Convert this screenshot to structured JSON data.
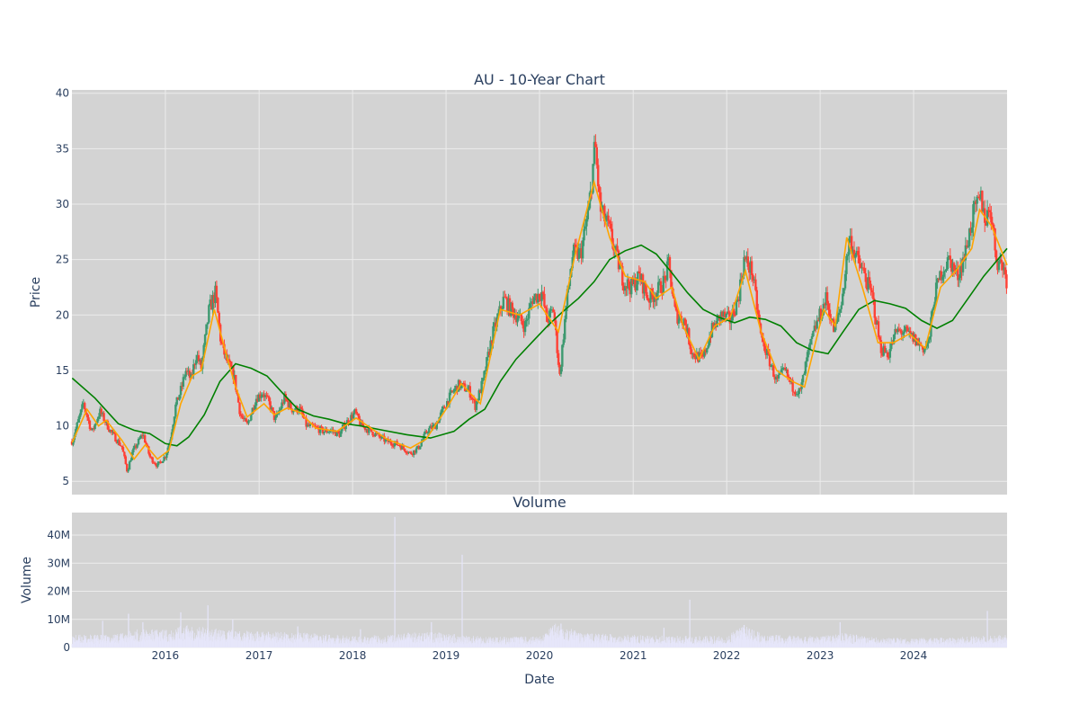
{
  "chart_data": [
    {
      "type": "candlestick",
      "title": "AU - 10-Year Chart",
      "ylabel": "Price",
      "ylim": [
        3.8,
        40.3
      ],
      "y_ticks": [
        5,
        10,
        15,
        20,
        25,
        30,
        35,
        40
      ],
      "xlim": [
        "2015-01-01",
        "2024-12-31"
      ],
      "grid": true,
      "colors": {
        "up": "#3d9970",
        "down": "#ff4136",
        "sma_fast": "#ffa500",
        "sma_slow": "#008000",
        "plot_bg": "#d3d3d3"
      },
      "price_path": [
        [
          "2015-01-02",
          8.6
        ],
        [
          "2015-02-15",
          12.0
        ],
        [
          "2015-03-20",
          9.4
        ],
        [
          "2015-04-20",
          11.3
        ],
        [
          "2015-06-01",
          9.5
        ],
        [
          "2015-07-15",
          8.1
        ],
        [
          "2015-08-05",
          5.9
        ],
        [
          "2015-08-25",
          7.6
        ],
        [
          "2015-10-05",
          9.3
        ],
        [
          "2015-11-01",
          7.2
        ],
        [
          "2015-12-01",
          6.4
        ],
        [
          "2016-01-01",
          7.3
        ],
        [
          "2016-01-20",
          8.8
        ],
        [
          "2016-02-10",
          11.8
        ],
        [
          "2016-03-05",
          13.5
        ],
        [
          "2016-03-20",
          15.0
        ],
        [
          "2016-04-10",
          14.2
        ],
        [
          "2016-05-01",
          16.5
        ],
        [
          "2016-05-20",
          15.2
        ],
        [
          "2016-06-20",
          20.5
        ],
        [
          "2016-07-15",
          22.0
        ],
        [
          "2016-08-05",
          17.5
        ],
        [
          "2016-08-25",
          16.0
        ],
        [
          "2016-09-25",
          14.5
        ],
        [
          "2016-10-20",
          11.0
        ],
        [
          "2016-11-15",
          10.0
        ],
        [
          "2016-12-20",
          12.5
        ],
        [
          "2017-01-15",
          13.0
        ],
        [
          "2017-02-10",
          12.0
        ],
        [
          "2017-03-05",
          10.5
        ],
        [
          "2017-04-10",
          12.5
        ],
        [
          "2017-05-10",
          11.5
        ],
        [
          "2017-06-10",
          11.5
        ],
        [
          "2017-07-05",
          10.0
        ],
        [
          "2017-08-10",
          9.8
        ],
        [
          "2017-09-10",
          9.5
        ],
        [
          "2017-10-10",
          9.6
        ],
        [
          "2017-11-10",
          9.2
        ],
        [
          "2017-12-05",
          10.2
        ],
        [
          "2018-01-10",
          11.2
        ],
        [
          "2018-02-05",
          10.0
        ],
        [
          "2018-03-15",
          9.5
        ],
        [
          "2018-04-15",
          9.0
        ],
        [
          "2018-05-15",
          8.6
        ],
        [
          "2018-07-01",
          8.3
        ],
        [
          "2018-08-15",
          7.5
        ],
        [
          "2018-09-15",
          8.0
        ],
        [
          "2018-10-20",
          9.6
        ],
        [
          "2018-11-20",
          10.0
        ],
        [
          "2019-01-01",
          12.0
        ],
        [
          "2019-01-25",
          13.0
        ],
        [
          "2019-02-20",
          13.7
        ],
        [
          "2019-04-01",
          13.2
        ],
        [
          "2019-04-25",
          11.8
        ],
        [
          "2019-05-25",
          14.0
        ],
        [
          "2019-07-01",
          18.2
        ],
        [
          "2019-08-15",
          21.5
        ],
        [
          "2019-09-10",
          20.5
        ],
        [
          "2019-10-10",
          19.8
        ],
        [
          "2019-11-05",
          19.0
        ],
        [
          "2019-12-05",
          21.5
        ],
        [
          "2020-01-10",
          22.0
        ],
        [
          "2020-01-30",
          19.5
        ],
        [
          "2020-02-25",
          20.5
        ],
        [
          "2020-03-20",
          14.5
        ],
        [
          "2020-04-15",
          21.0
        ],
        [
          "2020-05-10",
          25.5
        ],
        [
          "2020-06-10",
          25.5
        ],
        [
          "2020-07-15",
          30.0
        ],
        [
          "2020-08-05",
          35.5
        ],
        [
          "2020-08-25",
          29.5
        ],
        [
          "2020-09-25",
          28.0
        ],
        [
          "2020-10-25",
          25.5
        ],
        [
          "2020-11-25",
          23.0
        ],
        [
          "2020-12-25",
          22.5
        ],
        [
          "2021-01-25",
          23.5
        ],
        [
          "2021-03-01",
          21.5
        ],
        [
          "2021-04-01",
          22.0
        ],
        [
          "2021-05-01",
          23.0
        ],
        [
          "2021-05-20",
          24.5
        ],
        [
          "2021-06-15",
          20.0
        ],
        [
          "2021-07-20",
          19.5
        ],
        [
          "2021-08-20",
          16.5
        ],
        [
          "2021-09-30",
          16.0
        ],
        [
          "2021-11-01",
          18.5
        ],
        [
          "2021-12-10",
          20.0
        ],
        [
          "2022-01-15",
          19.5
        ],
        [
          "2022-02-15",
          21.5
        ],
        [
          "2022-03-10",
          25.0
        ],
        [
          "2022-04-10",
          24.0
        ],
        [
          "2022-05-15",
          18.0
        ],
        [
          "2022-06-15",
          16.0
        ],
        [
          "2022-07-15",
          14.0
        ],
        [
          "2022-08-15",
          15.0
        ],
        [
          "2022-09-15",
          13.5
        ],
        [
          "2022-10-15",
          13.0
        ],
        [
          "2022-11-15",
          16.5
        ],
        [
          "2022-12-15",
          19.0
        ],
        [
          "2023-01-25",
          21.5
        ],
        [
          "2023-02-25",
          18.5
        ],
        [
          "2023-03-25",
          21.0
        ],
        [
          "2023-04-25",
          27.0
        ],
        [
          "2023-05-25",
          25.0
        ],
        [
          "2023-06-25",
          23.5
        ],
        [
          "2023-07-25",
          21.5
        ],
        [
          "2023-08-25",
          17.0
        ],
        [
          "2023-09-25",
          16.5
        ],
        [
          "2023-10-25",
          18.5
        ],
        [
          "2023-11-25",
          18.5
        ],
        [
          "2023-12-25",
          18.0
        ],
        [
          "2024-02-10",
          17.0
        ],
        [
          "2024-03-01",
          17.5
        ],
        [
          "2024-03-20",
          21.5
        ],
        [
          "2024-04-20",
          24.0
        ],
        [
          "2024-05-20",
          25.0
        ],
        [
          "2024-06-20",
          23.5
        ],
        [
          "2024-07-20",
          25.5
        ],
        [
          "2024-08-20",
          29.0
        ],
        [
          "2024-09-20",
          30.5
        ],
        [
          "2024-10-10",
          28.5
        ],
        [
          "2024-10-25",
          30.0
        ],
        [
          "2024-11-20",
          25.0
        ],
        [
          "2024-12-15",
          24.5
        ],
        [
          "2024-12-31",
          23.0
        ]
      ],
      "sma_fast": [
        [
          "2015-01-02",
          8.5
        ],
        [
          "2015-03-01",
          11.5
        ],
        [
          "2015-04-15",
          10.0
        ],
        [
          "2015-05-15",
          10.5
        ],
        [
          "2015-07-15",
          8.7
        ],
        [
          "2015-09-01",
          7.0
        ],
        [
          "2015-10-15",
          8.3
        ],
        [
          "2015-12-01",
          7.0
        ],
        [
          "2016-01-15",
          7.8
        ],
        [
          "2016-03-01",
          12.0
        ],
        [
          "2016-04-15",
          14.5
        ],
        [
          "2016-05-20",
          15.0
        ],
        [
          "2016-07-10",
          20.5
        ],
        [
          "2016-08-25",
          16.5
        ],
        [
          "2016-10-01",
          13.5
        ],
        [
          "2016-11-15",
          10.8
        ],
        [
          "2017-01-20",
          12.0
        ],
        [
          "2017-03-01",
          11.0
        ],
        [
          "2017-04-20",
          11.6
        ],
        [
          "2017-06-10",
          11.2
        ],
        [
          "2017-08-10",
          9.8
        ],
        [
          "2017-11-01",
          9.5
        ],
        [
          "2018-01-15",
          10.7
        ],
        [
          "2018-03-01",
          10.0
        ],
        [
          "2018-05-15",
          8.8
        ],
        [
          "2018-08-15",
          8.0
        ],
        [
          "2018-10-15",
          8.8
        ],
        [
          "2019-01-01",
          11.5
        ],
        [
          "2019-03-01",
          13.8
        ],
        [
          "2019-05-15",
          12.0
        ],
        [
          "2019-08-01",
          20.5
        ],
        [
          "2019-10-15",
          20.0
        ],
        [
          "2020-01-01",
          21.0
        ],
        [
          "2020-03-15",
          18.5
        ],
        [
          "2020-05-15",
          25.0
        ],
        [
          "2020-08-01",
          32.0
        ],
        [
          "2020-10-01",
          27.0
        ],
        [
          "2020-12-01",
          23.5
        ],
        [
          "2021-02-15",
          23.0
        ],
        [
          "2021-04-01",
          21.5
        ],
        [
          "2021-06-01",
          22.5
        ],
        [
          "2021-07-15",
          19.0
        ],
        [
          "2021-09-15",
          16.0
        ],
        [
          "2021-11-15",
          19.0
        ],
        [
          "2022-01-15",
          19.8
        ],
        [
          "2022-03-15",
          24.0
        ],
        [
          "2022-05-15",
          18.5
        ],
        [
          "2022-07-15",
          15.0
        ],
        [
          "2022-09-15",
          14.0
        ],
        [
          "2022-11-01",
          13.5
        ],
        [
          "2023-01-15",
          20.5
        ],
        [
          "2023-03-01",
          19.0
        ],
        [
          "2023-04-15",
          27.0
        ],
        [
          "2023-06-15",
          22.5
        ],
        [
          "2023-08-15",
          17.5
        ],
        [
          "2023-10-15",
          17.5
        ],
        [
          "2023-12-15",
          18.3
        ],
        [
          "2024-02-15",
          17.0
        ],
        [
          "2024-04-15",
          22.5
        ],
        [
          "2024-06-15",
          24.0
        ],
        [
          "2024-08-15",
          26.0
        ],
        [
          "2024-09-15",
          29.5
        ],
        [
          "2024-11-01",
          28.0
        ],
        [
          "2024-12-31",
          24.5
        ]
      ],
      "sma_slow": [
        [
          "2015-01-02",
          14.3
        ],
        [
          "2015-04-01",
          12.5
        ],
        [
          "2015-07-01",
          10.2
        ],
        [
          "2015-09-01",
          9.6
        ],
        [
          "2015-11-01",
          9.3
        ],
        [
          "2016-01-01",
          8.4
        ],
        [
          "2016-02-15",
          8.2
        ],
        [
          "2016-04-01",
          9.0
        ],
        [
          "2016-06-01",
          11.0
        ],
        [
          "2016-08-01",
          14.0
        ],
        [
          "2016-10-01",
          15.6
        ],
        [
          "2016-12-01",
          15.2
        ],
        [
          "2017-02-01",
          14.5
        ],
        [
          "2017-04-01",
          13.0
        ],
        [
          "2017-06-01",
          11.5
        ],
        [
          "2017-08-01",
          10.9
        ],
        [
          "2017-10-01",
          10.6
        ],
        [
          "2017-12-01",
          10.2
        ],
        [
          "2018-02-01",
          10.0
        ],
        [
          "2018-05-01",
          9.6
        ],
        [
          "2018-08-01",
          9.2
        ],
        [
          "2018-11-01",
          8.9
        ],
        [
          "2019-02-01",
          9.5
        ],
        [
          "2019-04-01",
          10.6
        ],
        [
          "2019-06-01",
          11.5
        ],
        [
          "2019-08-01",
          14.0
        ],
        [
          "2019-10-01",
          16.0
        ],
        [
          "2019-12-01",
          17.5
        ],
        [
          "2020-02-01",
          19.0
        ],
        [
          "2020-04-01",
          20.3
        ],
        [
          "2020-06-01",
          21.5
        ],
        [
          "2020-08-01",
          23.0
        ],
        [
          "2020-10-01",
          25.0
        ],
        [
          "2020-12-01",
          25.8
        ],
        [
          "2021-02-01",
          26.3
        ],
        [
          "2021-04-01",
          25.5
        ],
        [
          "2021-06-01",
          23.8
        ],
        [
          "2021-08-01",
          22.0
        ],
        [
          "2021-10-01",
          20.5
        ],
        [
          "2021-12-01",
          19.8
        ],
        [
          "2022-02-01",
          19.3
        ],
        [
          "2022-04-01",
          19.8
        ],
        [
          "2022-06-01",
          19.6
        ],
        [
          "2022-08-01",
          19.0
        ],
        [
          "2022-10-01",
          17.5
        ],
        [
          "2022-12-01",
          16.8
        ],
        [
          "2023-02-01",
          16.5
        ],
        [
          "2023-04-01",
          18.5
        ],
        [
          "2023-06-01",
          20.5
        ],
        [
          "2023-08-01",
          21.3
        ],
        [
          "2023-10-01",
          21.0
        ],
        [
          "2023-12-01",
          20.6
        ],
        [
          "2024-02-01",
          19.5
        ],
        [
          "2024-04-01",
          18.8
        ],
        [
          "2024-06-01",
          19.5
        ],
        [
          "2024-08-01",
          21.5
        ],
        [
          "2024-10-01",
          23.5
        ],
        [
          "2024-12-31",
          26.0
        ]
      ]
    },
    {
      "type": "bar",
      "title": "Volume",
      "xlabel": "Date",
      "ylabel": "Volume",
      "ylim": [
        0,
        48000000
      ],
      "y_ticks": [
        0,
        10000000,
        20000000,
        30000000,
        40000000
      ],
      "y_tick_labels": [
        "0",
        "10M",
        "20M",
        "30M",
        "40M"
      ],
      "x_ticks": [
        "2016-01-01",
        "2017-01-01",
        "2018-01-01",
        "2019-01-01",
        "2020-01-01",
        "2021-01-01",
        "2022-01-01",
        "2023-01-01",
        "2024-01-01"
      ],
      "x_tick_labels": [
        "2016",
        "2017",
        "2018",
        "2019",
        "2020",
        "2021",
        "2022",
        "2023",
        "2024"
      ],
      "grid": true,
      "bar_color": "#e6e6fa",
      "baseline": [
        [
          "2015-01-01",
          3500000
        ],
        [
          "2015-06-01",
          3500000
        ],
        [
          "2015-09-01",
          5000000
        ],
        [
          "2016-01-01",
          5000000
        ],
        [
          "2016-04-01",
          6500000
        ],
        [
          "2016-08-01",
          5000000
        ],
        [
          "2017-01-01",
          4500000
        ],
        [
          "2017-06-01",
          4200000
        ],
        [
          "2018-01-01",
          3200000
        ],
        [
          "2018-06-01",
          3500000
        ],
        [
          "2018-10-01",
          4500000
        ],
        [
          "2019-03-01",
          3500000
        ],
        [
          "2019-06-01",
          3000000
        ],
        [
          "2020-01-01",
          3000000
        ],
        [
          "2020-03-20",
          7500000
        ],
        [
          "2020-06-01",
          4000000
        ],
        [
          "2021-01-01",
          3500000
        ],
        [
          "2021-06-01",
          3200000
        ],
        [
          "2022-01-01",
          3200000
        ],
        [
          "2022-03-10",
          6000000
        ],
        [
          "2022-06-01",
          3500000
        ],
        [
          "2023-01-01",
          3200000
        ],
        [
          "2023-04-01",
          4000000
        ],
        [
          "2023-08-01",
          2800000
        ],
        [
          "2024-01-01",
          2500000
        ],
        [
          "2024-06-01",
          2800000
        ],
        [
          "2024-12-31",
          3500000
        ]
      ],
      "spikes": [
        [
          "2015-05-01",
          9500000
        ],
        [
          "2015-08-10",
          12000000
        ],
        [
          "2015-10-05",
          9000000
        ],
        [
          "2016-03-01",
          12500000
        ],
        [
          "2016-06-15",
          15000000
        ],
        [
          "2016-09-20",
          10000000
        ],
        [
          "2017-06-01",
          7500000
        ],
        [
          "2018-02-01",
          6500000
        ],
        [
          "2018-06-15",
          46500000
        ],
        [
          "2018-11-05",
          9000000
        ],
        [
          "2019-03-05",
          33000000
        ],
        [
          "2020-03-25",
          8500000
        ],
        [
          "2021-05-01",
          7000000
        ],
        [
          "2021-08-10",
          17000000
        ],
        [
          "2022-03-10",
          8000000
        ],
        [
          "2023-03-20",
          9000000
        ],
        [
          "2024-10-15",
          13000000
        ]
      ]
    }
  ]
}
